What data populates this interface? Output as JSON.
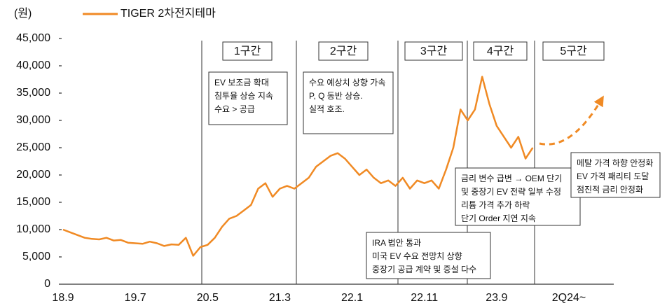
{
  "chart_data": {
    "type": "line",
    "unit_label": "(원)",
    "categories": [
      "18.9",
      null,
      null,
      null,
      null,
      null,
      null,
      null,
      null,
      null,
      "19.7",
      null,
      null,
      null,
      null,
      null,
      null,
      null,
      null,
      null,
      "20.5",
      null,
      null,
      null,
      null,
      null,
      null,
      null,
      null,
      null,
      "21.3",
      null,
      null,
      null,
      null,
      null,
      null,
      null,
      null,
      null,
      "22.1",
      null,
      null,
      null,
      null,
      null,
      null,
      null,
      null,
      null,
      "22.11",
      null,
      null,
      null,
      null,
      null,
      null,
      null,
      null,
      null,
      "23.9",
      null,
      null,
      null,
      null,
      null,
      null,
      null,
      null,
      null,
      "2Q24~"
    ],
    "series": [
      {
        "name": "TIGER 2차전지테마",
        "color": "#f08a24",
        "values": [
          10000,
          9500,
          9000,
          8500,
          8300,
          8200,
          8500,
          8000,
          8100,
          7600,
          7500,
          7400,
          7800,
          7500,
          7000,
          7300,
          7200,
          8500,
          5200,
          6800,
          7200,
          8500,
          10500,
          12000,
          12500,
          13500,
          14500,
          17500,
          18500,
          16000,
          17500,
          18000,
          17500,
          18500,
          19500,
          21500,
          22500,
          23500,
          24000,
          23000,
          21500,
          20000,
          21000,
          19500,
          18500,
          19000,
          18000,
          19500,
          17500,
          19000,
          18500,
          19000,
          17500,
          21000,
          25000,
          32000,
          30000,
          32000,
          38000,
          33000,
          29000,
          27000,
          25000,
          27000,
          23000,
          25000,
          null,
          null,
          null,
          null,
          null
        ]
      }
    ],
    "ylim": [
      0,
      45000
    ],
    "yticks": [
      0,
      {
        "value": 5000,
        "label": "5,000"
      },
      {
        "value": 10000,
        "label": "10,000"
      },
      {
        "value": 15000,
        "label": "15,000"
      },
      {
        "value": 20000,
        "label": "20,000"
      },
      {
        "value": 25000,
        "label": "25,000"
      },
      {
        "value": 30000,
        "label": "30,000"
      },
      {
        "value": 35000,
        "label": "35,000"
      },
      {
        "value": 40000,
        "label": "40,000"
      },
      {
        "value": 45000,
        "label": "45,000"
      }
    ],
    "sections": [
      "1구간",
      "2구간",
      "3구간",
      "4구간",
      "5구간"
    ],
    "annotations": [
      {
        "lines": [
          "EV 보조금 확대",
          "침투율 상승 지속",
          "수요 > 공급"
        ]
      },
      {
        "lines": [
          "수요 예상치 상향 가속",
          "P, Q 동반 상승.",
          "실적 호조."
        ]
      },
      {
        "lines": [
          "IRA 법안 통과",
          "미국 EV 수요 전망치 상향",
          "중장기 공급 계약 및 증설 다수"
        ]
      },
      {
        "lines": [
          "금리 변수 급변 → OEM 단기",
          "및 중장기 EV 전략 일부 수정",
          "리튬 가격 추가 하락",
          "단기 Order 지연 지속"
        ]
      },
      {
        "lines": [
          "메탈 가격 하향 안정화",
          "EV 가격 패리티 도달",
          "점진적 금리 안정화"
        ]
      }
    ]
  }
}
